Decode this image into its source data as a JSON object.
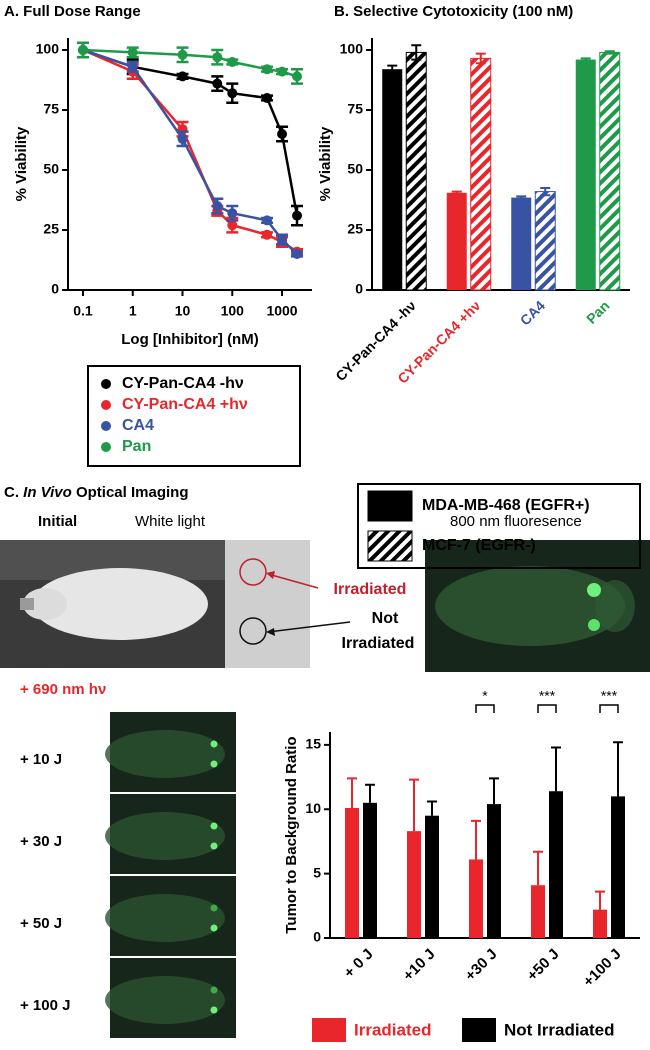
{
  "chart_data": [
    {
      "type": "line",
      "title": "A. Full Dose Range",
      "xlabel": "Log [Inhibitor] (nM)",
      "ylabel": "% Viability",
      "xscale": "log",
      "xlim": [
        0.05,
        4000
      ],
      "xticks": [
        0.1,
        1,
        10,
        100,
        1000
      ],
      "ylim": [
        0,
        105
      ],
      "yticks": [
        0,
        25,
        50,
        75,
        100
      ],
      "x": [
        0.1,
        1,
        10,
        50,
        100,
        500,
        1000,
        2000
      ],
      "series": [
        {
          "name": "CY-Pan-CA4 -hν",
          "color": "#000000",
          "values": [
            100,
            93,
            89,
            86,
            82,
            80,
            65,
            31
          ],
          "errors": [
            3,
            3,
            1,
            3,
            4,
            1,
            3,
            4
          ]
        },
        {
          "name": "CY-Pan-CA4 +hν",
          "color": "#e8262b",
          "values": [
            100,
            91,
            67,
            33,
            27,
            23,
            20,
            16
          ],
          "errors": [
            3,
            3,
            3,
            2,
            3,
            1,
            2,
            1
          ]
        },
        {
          "name": "CA4",
          "color": "#3953a4",
          "values": [
            100,
            93,
            63,
            35,
            32,
            29,
            21,
            15
          ],
          "errors": [
            3,
            2,
            3,
            3,
            3,
            1,
            2,
            1
          ]
        },
        {
          "name": "Pan",
          "color": "#1f9a48",
          "values": [
            100,
            99,
            98,
            97,
            95,
            92,
            91,
            89
          ],
          "errors": [
            3,
            2,
            3,
            3,
            1,
            1,
            1,
            3
          ]
        }
      ]
    },
    {
      "type": "bar",
      "title": "B. Selective Cytotoxicity (100 nM)",
      "ylabel": "% Viability",
      "ylim": [
        0,
        105
      ],
      "yticks": [
        0,
        25,
        50,
        75,
        100
      ],
      "categories": [
        "CY-Pan-CA4 -hν",
        "CY-Pan-CA4 +hν",
        "CA4",
        "Pan"
      ],
      "category_colors": [
        "#000000",
        "#e8262b",
        "#3953a4",
        "#1f9a48"
      ],
      "series": [
        {
          "name": "MDA-MB-468 (EGFR+)",
          "fill": "solid",
          "values": [
            92,
            40.5,
            38.5,
            96
          ],
          "errors": [
            1.5,
            0.5,
            0.5,
            0.5
          ]
        },
        {
          "name": "MCF-7 (EGFR-)",
          "fill": "hatched",
          "values": [
            99,
            96.5,
            41,
            99
          ],
          "errors": [
            3,
            2,
            1.5,
            0.5
          ]
        }
      ]
    },
    {
      "type": "bar",
      "ylabel": "Tumor to Background Ratio",
      "ylim": [
        0,
        16
      ],
      "yticks": [
        0,
        5,
        10,
        15
      ],
      "categories": [
        "+ 0 J",
        "+10 J",
        "+30 J",
        "+50 J",
        "+100 J"
      ],
      "significance": [
        null,
        null,
        "*",
        "***",
        "***"
      ],
      "series": [
        {
          "name": "Irradiated",
          "color": "#e8262b",
          "values": [
            10.1,
            8.3,
            6.1,
            4.1,
            2.2
          ],
          "errors": [
            2.3,
            4.0,
            3.0,
            2.6,
            1.4
          ]
        },
        {
          "name": "Not Irradiated",
          "color": "#000000",
          "values": [
            10.5,
            9.5,
            10.4,
            11.4,
            11.0
          ],
          "errors": [
            1.4,
            1.1,
            2.0,
            3.4,
            4.2
          ]
        }
      ]
    }
  ],
  "imaging": {
    "panel_label": "C.",
    "title_italic": "In Vivo",
    "title": "Optical Imaging",
    "initial": "Initial",
    "white_light": "White light",
    "fluorescence": "800 nm fluoresence",
    "irradiated": "Irradiated",
    "not_irradiated": [
      "Not",
      "Irradiated"
    ],
    "light": "+ 690 nm hν",
    "doses": [
      "+ 10 J",
      "+ 30 J",
      "+ 50 J",
      "+ 100 J"
    ]
  }
}
